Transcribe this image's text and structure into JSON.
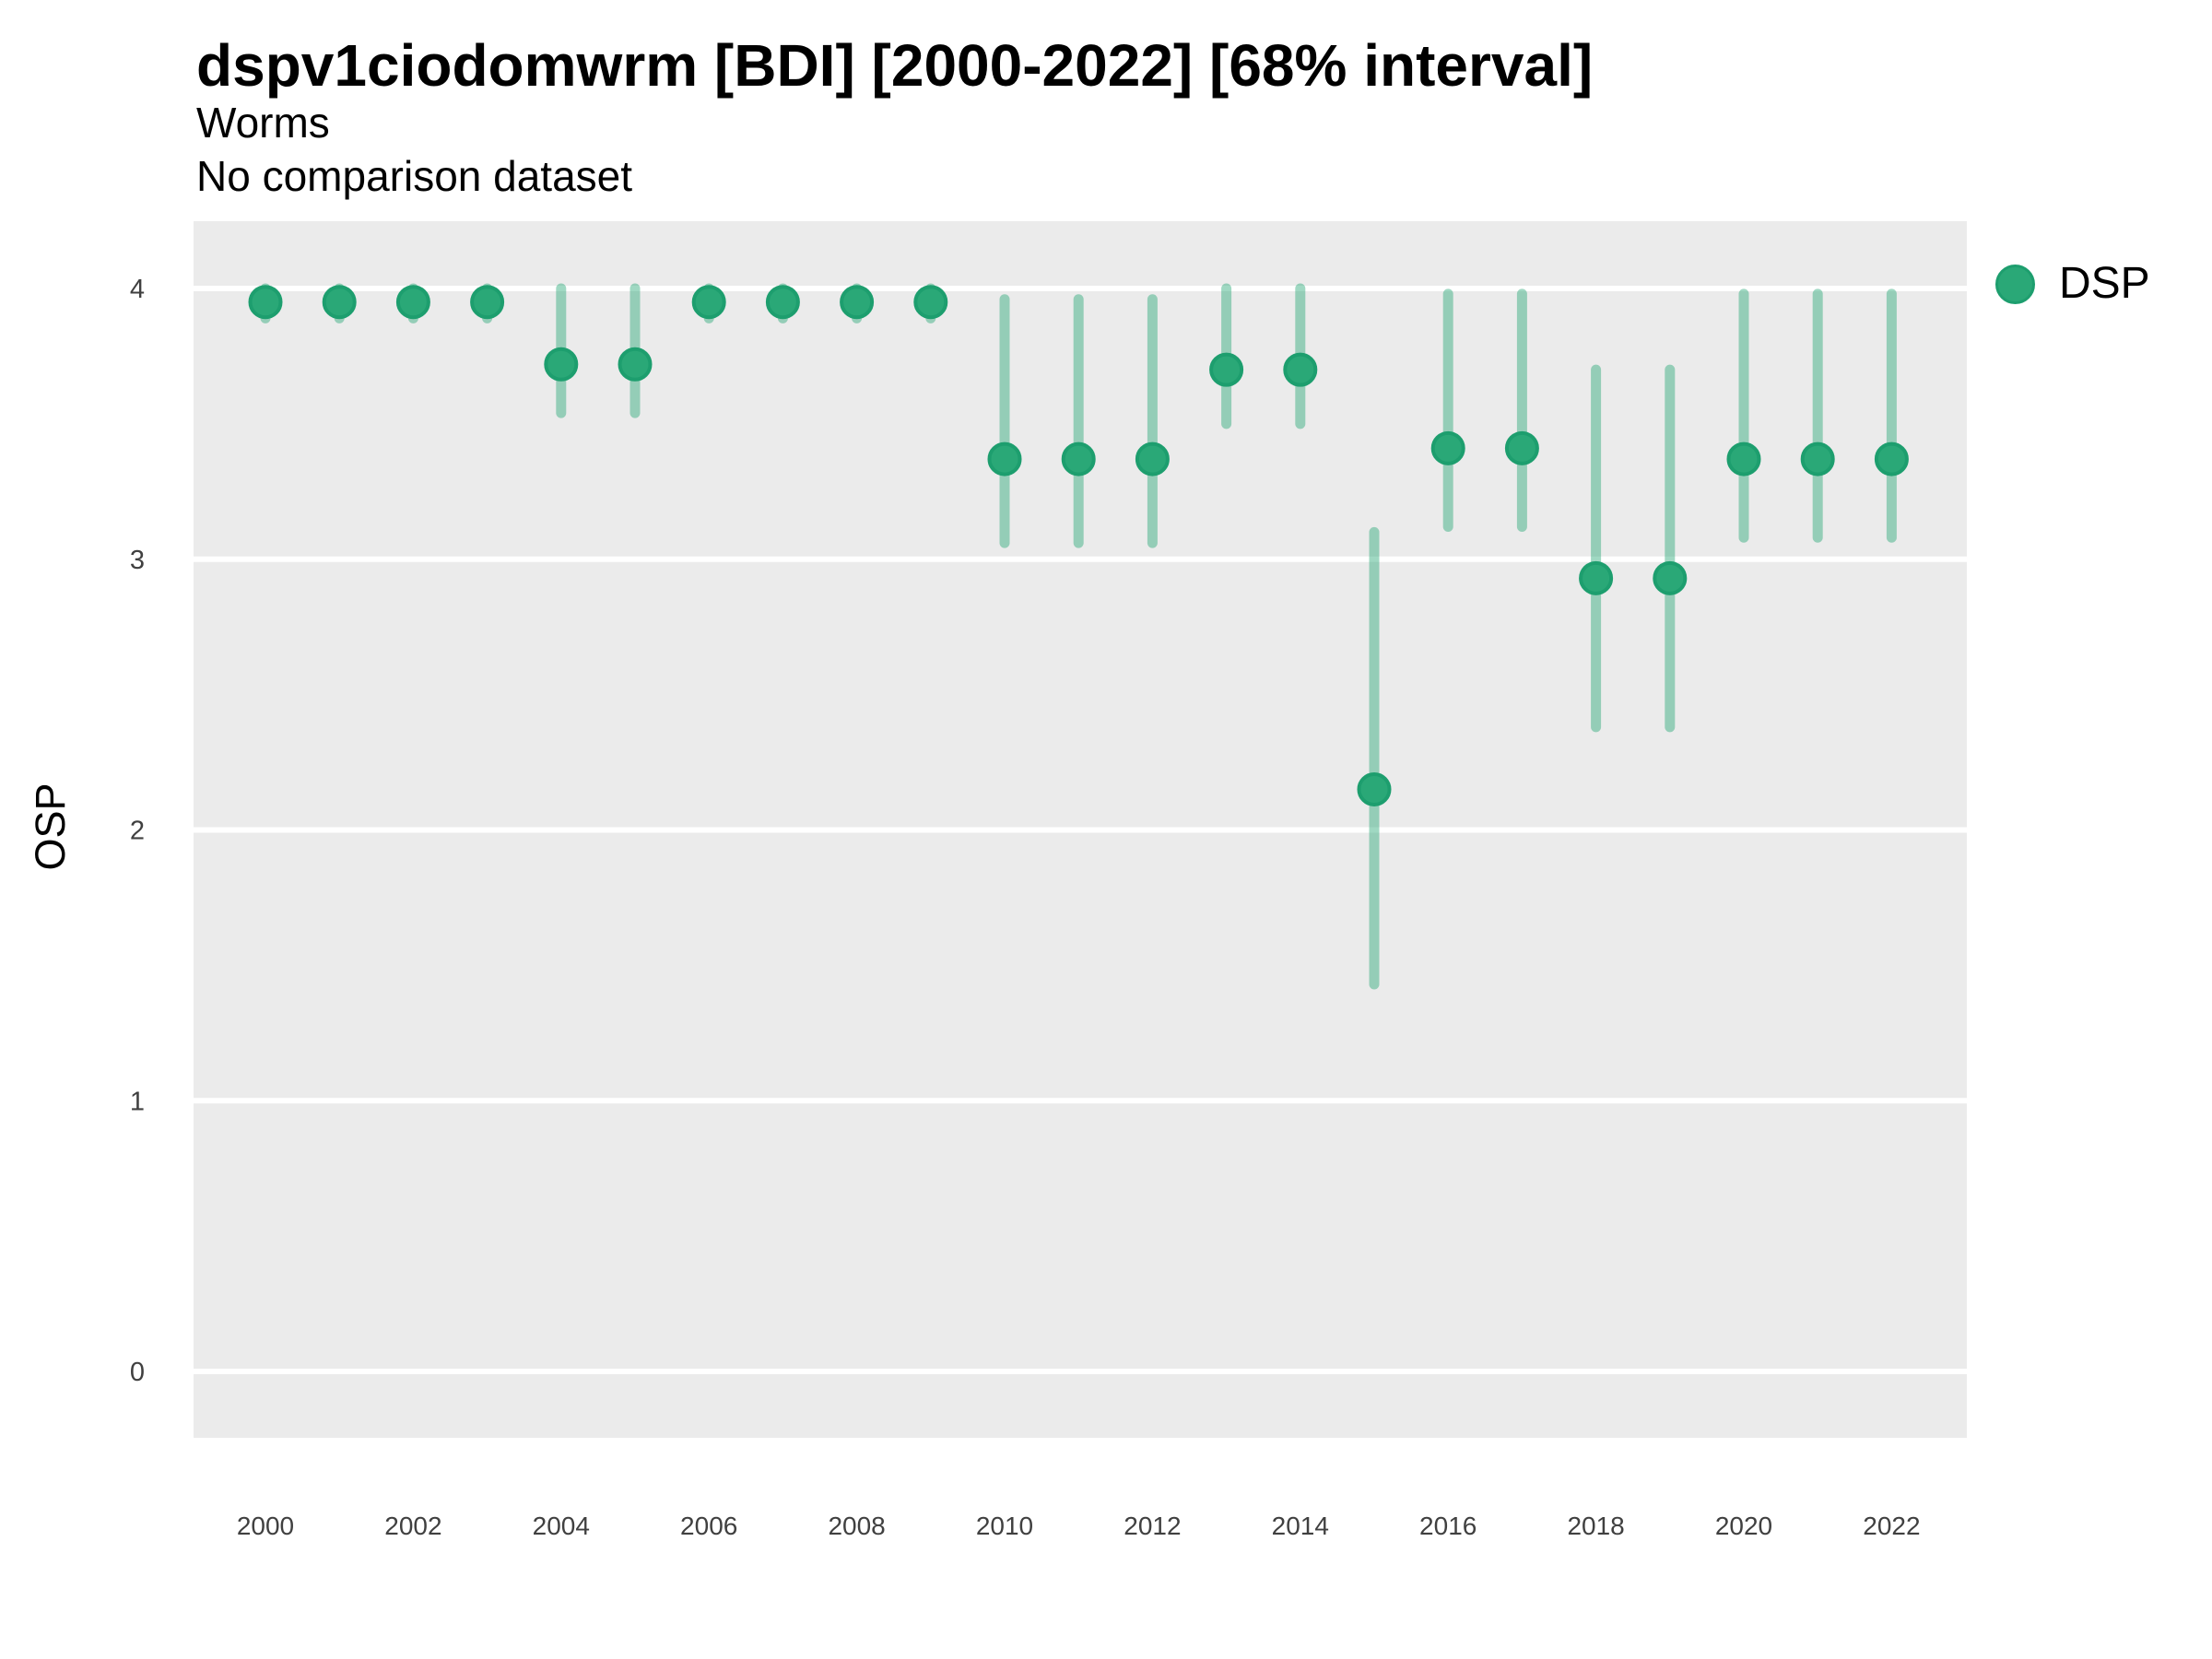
{
  "title": "dspv1ciodomwrm [BDI] [2000-2022] [68% interval]",
  "subtitle": "Worms",
  "comparison_note": "No comparison dataset",
  "legend": {
    "label": "DSP"
  },
  "colors": {
    "point_fill": "#2aa877",
    "point_border": "#1d9e6e",
    "interval_stroke": "#2aa877",
    "interval_opacity": 0.45,
    "plot_background": "#ebebeb",
    "gridline": "#ffffff",
    "axis_tick_text": "#404040",
    "text": "#000000"
  },
  "chart_data": {
    "type": "scatter",
    "title": "dspv1ciodomwrm [BDI] [2000-2022] [68% interval]",
    "subtitle": "Worms",
    "note": "No comparison dataset",
    "xlabel": "",
    "ylabel": "OSP",
    "interval_level": "68%",
    "grid": "horizontal-major-only",
    "legend_position": "right-top",
    "x": [
      2000,
      2001,
      2002,
      2003,
      2004,
      2005,
      2006,
      2007,
      2008,
      2009,
      2010,
      2011,
      2012,
      2013,
      2014,
      2015,
      2016,
      2017,
      2018,
      2019,
      2020,
      2021,
      2022
    ],
    "series": [
      {
        "name": "DSP",
        "values": [
          3.95,
          3.95,
          3.95,
          3.95,
          3.72,
          3.72,
          3.95,
          3.95,
          3.95,
          3.95,
          3.37,
          3.37,
          3.37,
          3.7,
          3.7,
          2.15,
          3.41,
          3.41,
          2.93,
          2.93,
          3.37,
          3.37,
          3.37
        ],
        "lower_68": [
          3.89,
          3.89,
          3.89,
          3.89,
          3.54,
          3.54,
          3.89,
          3.89,
          3.89,
          3.89,
          3.06,
          3.06,
          3.06,
          3.5,
          3.5,
          1.43,
          3.12,
          3.12,
          2.38,
          2.38,
          3.08,
          3.08,
          3.08
        ],
        "upper_68": [
          4.0,
          4.0,
          4.0,
          4.0,
          4.0,
          4.0,
          4.0,
          4.0,
          4.0,
          4.0,
          3.96,
          3.96,
          3.96,
          4.0,
          4.0,
          3.1,
          3.98,
          3.98,
          3.7,
          3.7,
          3.98,
          3.98,
          3.98
        ]
      }
    ],
    "x_ticks": [
      2000,
      2002,
      2004,
      2006,
      2008,
      2010,
      2012,
      2014,
      2016,
      2018,
      2020,
      2022
    ],
    "y_ticks": [
      0,
      1,
      2,
      3,
      4
    ],
    "ylim": [
      -0.25,
      4.25
    ],
    "xlim": [
      1999,
      2023
    ]
  }
}
